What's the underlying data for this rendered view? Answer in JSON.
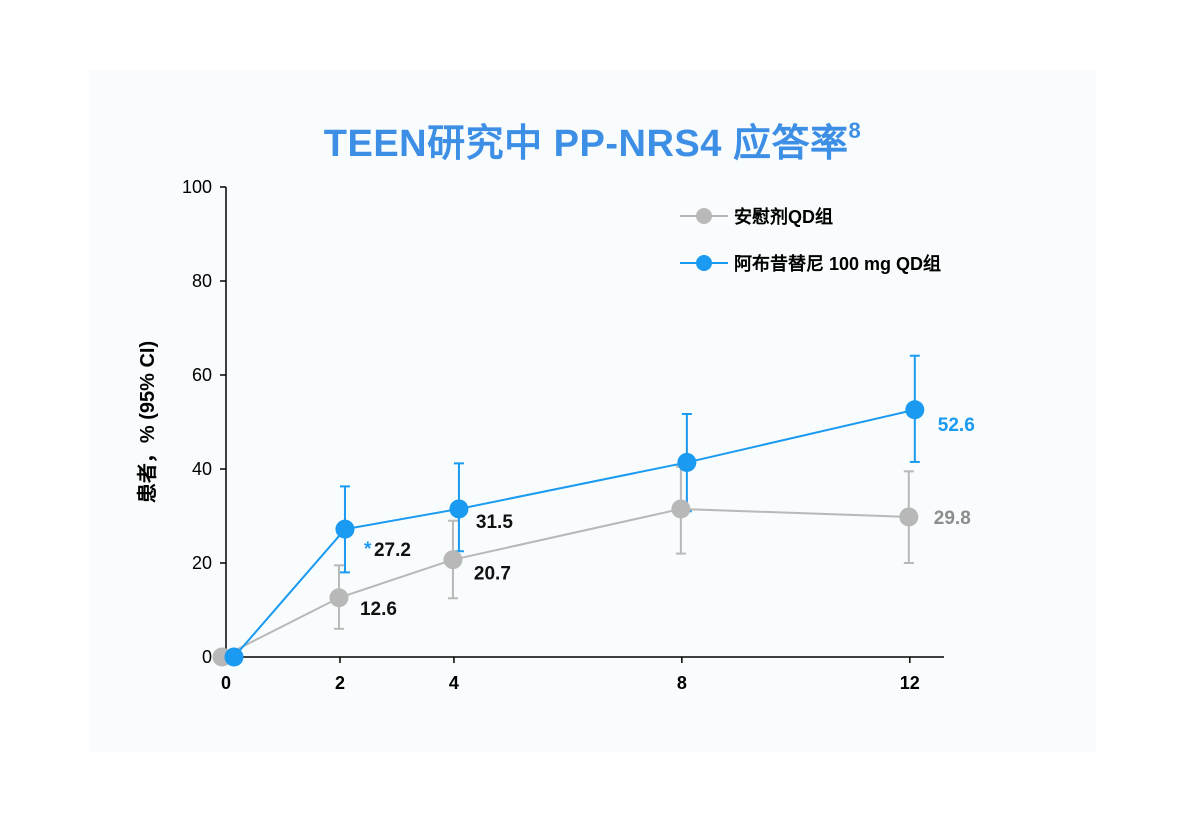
{
  "colors": {
    "placebo": "#b8b8b8",
    "treatment": "#1a9af0",
    "title": "#3d8fe6",
    "placebo_label": "#8c8c8c",
    "treatment_label": "#1a9af0",
    "axis": "#000000"
  },
  "chart_data": {
    "type": "line",
    "title": "TEEN研究中 PP-NRS4 应答率",
    "title_superscript": "8",
    "xlabel": "",
    "ylabel": "患者，% (95% CI)",
    "x": [
      0,
      2,
      4,
      8,
      12
    ],
    "xticks": [
      "0",
      "2",
      "4",
      "8",
      "12"
    ],
    "xlim": [
      0,
      12.6
    ],
    "ylim": [
      0,
      100
    ],
    "yticks": [
      "0",
      "20",
      "40",
      "60",
      "80",
      "100"
    ],
    "grid": false,
    "legend_position": "top-right",
    "significance_marker": "*",
    "series": [
      {
        "name": "安慰剂QD组",
        "values": [
          0,
          12.6,
          20.7,
          31.5,
          29.8
        ],
        "ci_low": [
          0,
          6,
          12.5,
          22,
          20
        ],
        "ci_high": [
          0,
          19.5,
          29,
          40.5,
          39.5
        ],
        "labels": [
          "",
          "12.6",
          "20.7",
          "",
          "29.8"
        ]
      },
      {
        "name": "阿布昔替尼 100 mg QD组",
        "values": [
          0,
          27.2,
          31.5,
          41.4,
          52.6
        ],
        "ci_low": [
          0,
          18,
          22.5,
          31,
          41.5
        ],
        "ci_high": [
          0,
          36.3,
          41.2,
          51.7,
          64.1
        ],
        "labels": [
          "",
          "27.2",
          "31.5",
          "",
          "52.6"
        ]
      }
    ]
  }
}
